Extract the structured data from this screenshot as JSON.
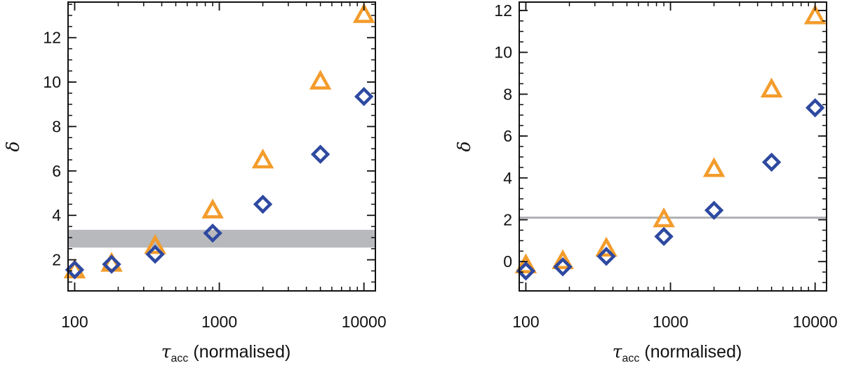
{
  "colors": {
    "triangle_series": "#F39C2B",
    "diamond_series": "#2E49A0",
    "band": "#B7B9BC",
    "hline": "#B0B2B5",
    "axis": "#111111"
  },
  "chart_data": [
    {
      "type": "scatter",
      "xscale": "log",
      "xlim": [
        90,
        12000
      ],
      "ylim": [
        0.6,
        13.6
      ],
      "xticks": [
        100,
        1000,
        10000
      ],
      "xtick_labels": [
        "100",
        "1000",
        "10000"
      ],
      "yticks": [
        2,
        4,
        6,
        8,
        10,
        12
      ],
      "ytick_labels": [
        "2",
        "4",
        "6",
        "8",
        "10",
        "12"
      ],
      "xlabel_symbol": "τ",
      "xlabel_sub": "acc",
      "xlabel_rest": " (normalised)",
      "ylabel": "δ",
      "band": [
        2.55,
        3.35
      ],
      "series": [
        {
          "marker": "triangle",
          "color": "#F39C2B",
          "x": [
            100,
            180,
            360,
            900,
            2000,
            5000,
            10000
          ],
          "y": [
            1.5,
            1.8,
            2.6,
            4.2,
            6.45,
            10.0,
            13.0
          ]
        },
        {
          "marker": "diamond",
          "color": "#2E49A0",
          "x": [
            100,
            180,
            360,
            900,
            2000,
            5000,
            10000
          ],
          "y": [
            1.55,
            1.8,
            2.25,
            3.2,
            4.5,
            6.75,
            9.35
          ]
        }
      ]
    },
    {
      "type": "scatter",
      "xscale": "log",
      "xlim": [
        90,
        12000
      ],
      "ylim": [
        -1.4,
        12.4
      ],
      "xticks": [
        100,
        1000,
        10000
      ],
      "xtick_labels": [
        "100",
        "1000",
        "10000"
      ],
      "yticks": [
        0,
        2,
        4,
        6,
        8,
        10,
        12
      ],
      "ytick_labels": [
        "0",
        "2",
        "4",
        "6",
        "8",
        "10",
        "12"
      ],
      "xlabel_symbol": "τ",
      "xlabel_sub": "acc",
      "xlabel_rest": " (normalised)",
      "ylabel": "δ",
      "hline": 2.1,
      "series": [
        {
          "marker": "triangle",
          "color": "#F39C2B",
          "x": [
            100,
            180,
            360,
            900,
            2000,
            5000,
            10000
          ],
          "y": [
            -0.2,
            0.0,
            0.6,
            2.0,
            4.4,
            8.2,
            11.7
          ]
        },
        {
          "marker": "diamond",
          "color": "#2E49A0",
          "x": [
            100,
            180,
            360,
            900,
            2000,
            5000,
            10000
          ],
          "y": [
            -0.45,
            -0.25,
            0.25,
            1.2,
            2.45,
            4.75,
            7.35
          ]
        }
      ]
    }
  ]
}
